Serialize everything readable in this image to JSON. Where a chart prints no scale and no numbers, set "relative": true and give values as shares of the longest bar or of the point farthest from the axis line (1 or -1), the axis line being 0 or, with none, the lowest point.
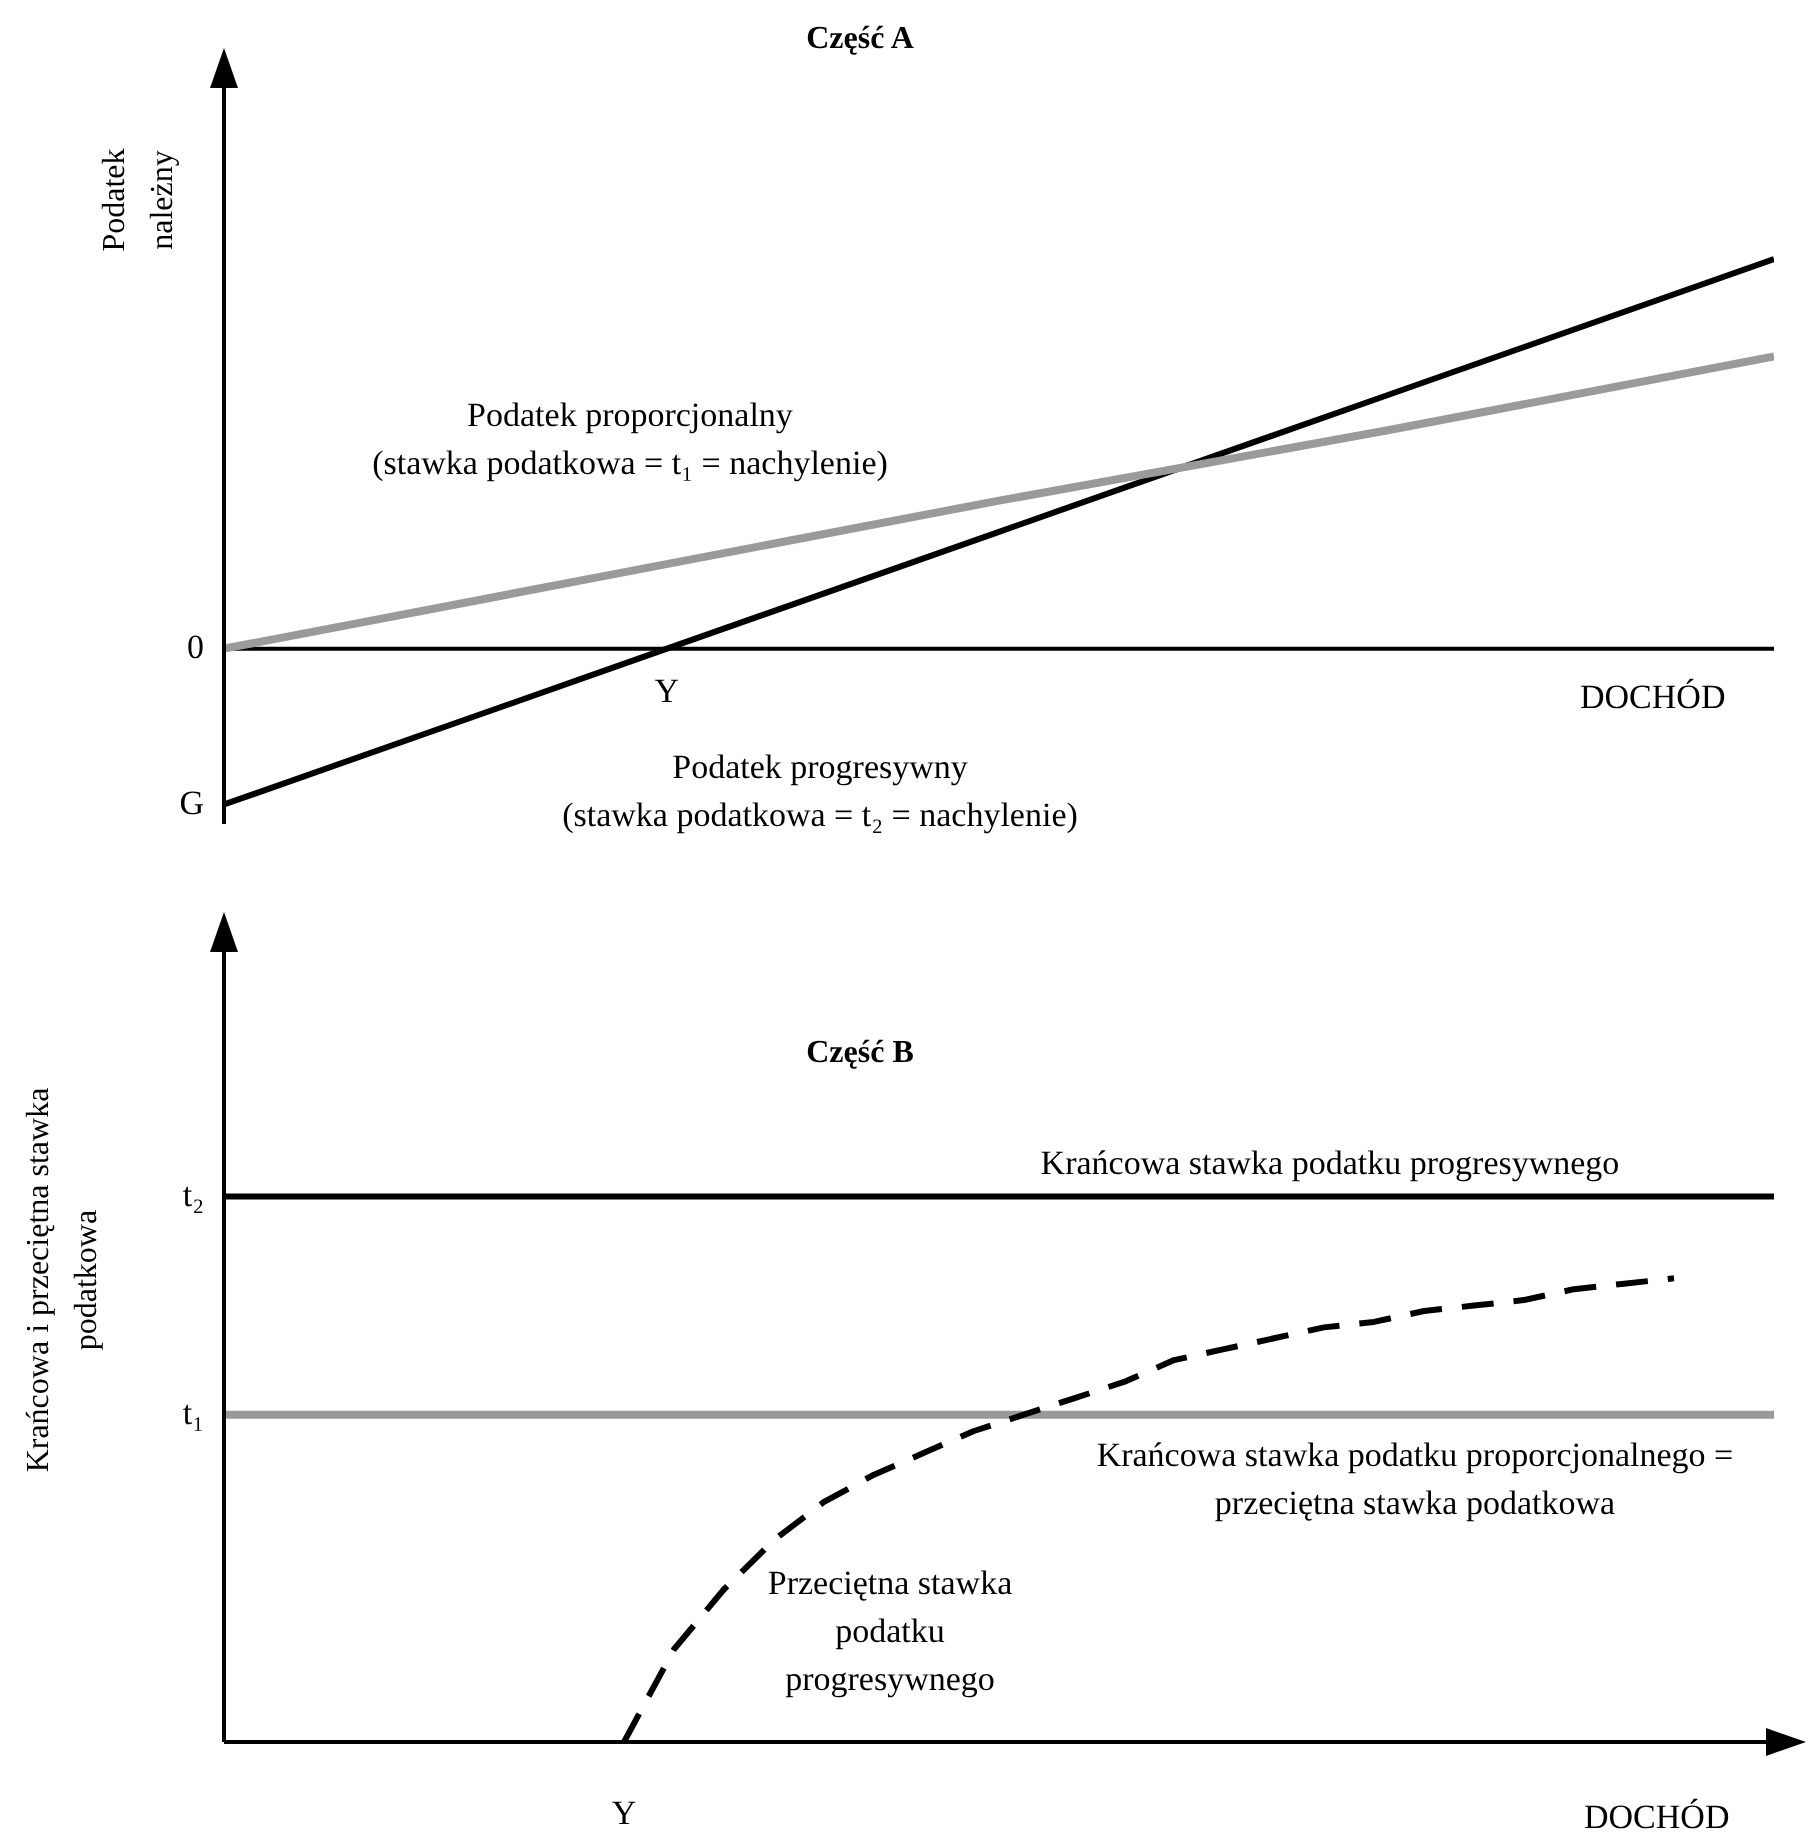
{
  "chart_data": [
    {
      "type": "line",
      "title": "Część A",
      "xlabel": "DOCHÓD",
      "ylabel": "Podatek należny",
      "relative": true,
      "marker": "none",
      "categories": [
        null,
        null,
        null,
        null,
        null
      ],
      "series": [
        {
          "name": "Podatek progresywny (stawka podatkowa = t₂ = nachylenie)",
          "color": "#000000",
          "values": [
            -0.4,
            -0.05,
            0.3,
            0.65,
            1.0
          ]
        },
        {
          "name": "Podatek proporcjonalny (stawka podatkowa = t₁ = nachylenie)",
          "color": "#9a9a9a",
          "values": [
            0,
            0.19,
            0.38,
            0.56,
            0.75
          ]
        }
      ],
      "annotations": [
        "0",
        "G",
        "Y"
      ]
    },
    {
      "type": "line",
      "title": "Część B",
      "xlabel": "DOCHÓD",
      "ylabel": "Krańcowa i przeciętna stawka podatkowa",
      "relative": true,
      "marker": "none",
      "categories": [
        null,
        null,
        null,
        null,
        null,
        null,
        null,
        null,
        null,
        null,
        null,
        null,
        null,
        null,
        null,
        null,
        null,
        null,
        null,
        null,
        null,
        null,
        null,
        null,
        null,
        null,
        null,
        null,
        null,
        null,
        null,
        null
      ],
      "series": [
        {
          "name": "Krańcowa stawka podatku progresywnego",
          "color": "#000000",
          "values": [
            1,
            1,
            1,
            1,
            1,
            1,
            1,
            1,
            1,
            1,
            1,
            1,
            1,
            1,
            1,
            1,
            1,
            1,
            1,
            1,
            1,
            1,
            1,
            1,
            1,
            1,
            1,
            1,
            1,
            1,
            1,
            1
          ]
        },
        {
          "name": "Krańcowa stawka podatku proporcjonalnego = przeciętna stawka podatkowa",
          "color": "#9a9a9a",
          "values": [
            0.6,
            0.6,
            0.6,
            0.6,
            0.6,
            0.6,
            0.6,
            0.6,
            0.6,
            0.6,
            0.6,
            0.6,
            0.6,
            0.6,
            0.6,
            0.6,
            0.6,
            0.6,
            0.6,
            0.6,
            0.6,
            0.6,
            0.6,
            0.6,
            0.6,
            0.6,
            0.6,
            0.6,
            0.6,
            0.6,
            0.6,
            0.6
          ]
        },
        {
          "name": "Przeciętna stawka podatku progresywnego",
          "color": "#000000",
          "line_style": "dashed",
          "values": [
            null,
            null,
            null,
            null,
            null,
            null,
            null,
            null,
            0,
            0.17,
            0.28,
            0.37,
            0.44,
            0.49,
            0.53,
            0.57,
            0.6,
            0.63,
            0.66,
            0.7,
            0.72,
            0.74,
            0.76,
            0.77,
            0.79,
            0.8,
            0.81,
            0.83,
            0.84,
            0.85,
            null,
            null
          ]
        }
      ],
      "annotations": [
        "t₂",
        "t₁",
        "Y"
      ]
    }
  ]
}
